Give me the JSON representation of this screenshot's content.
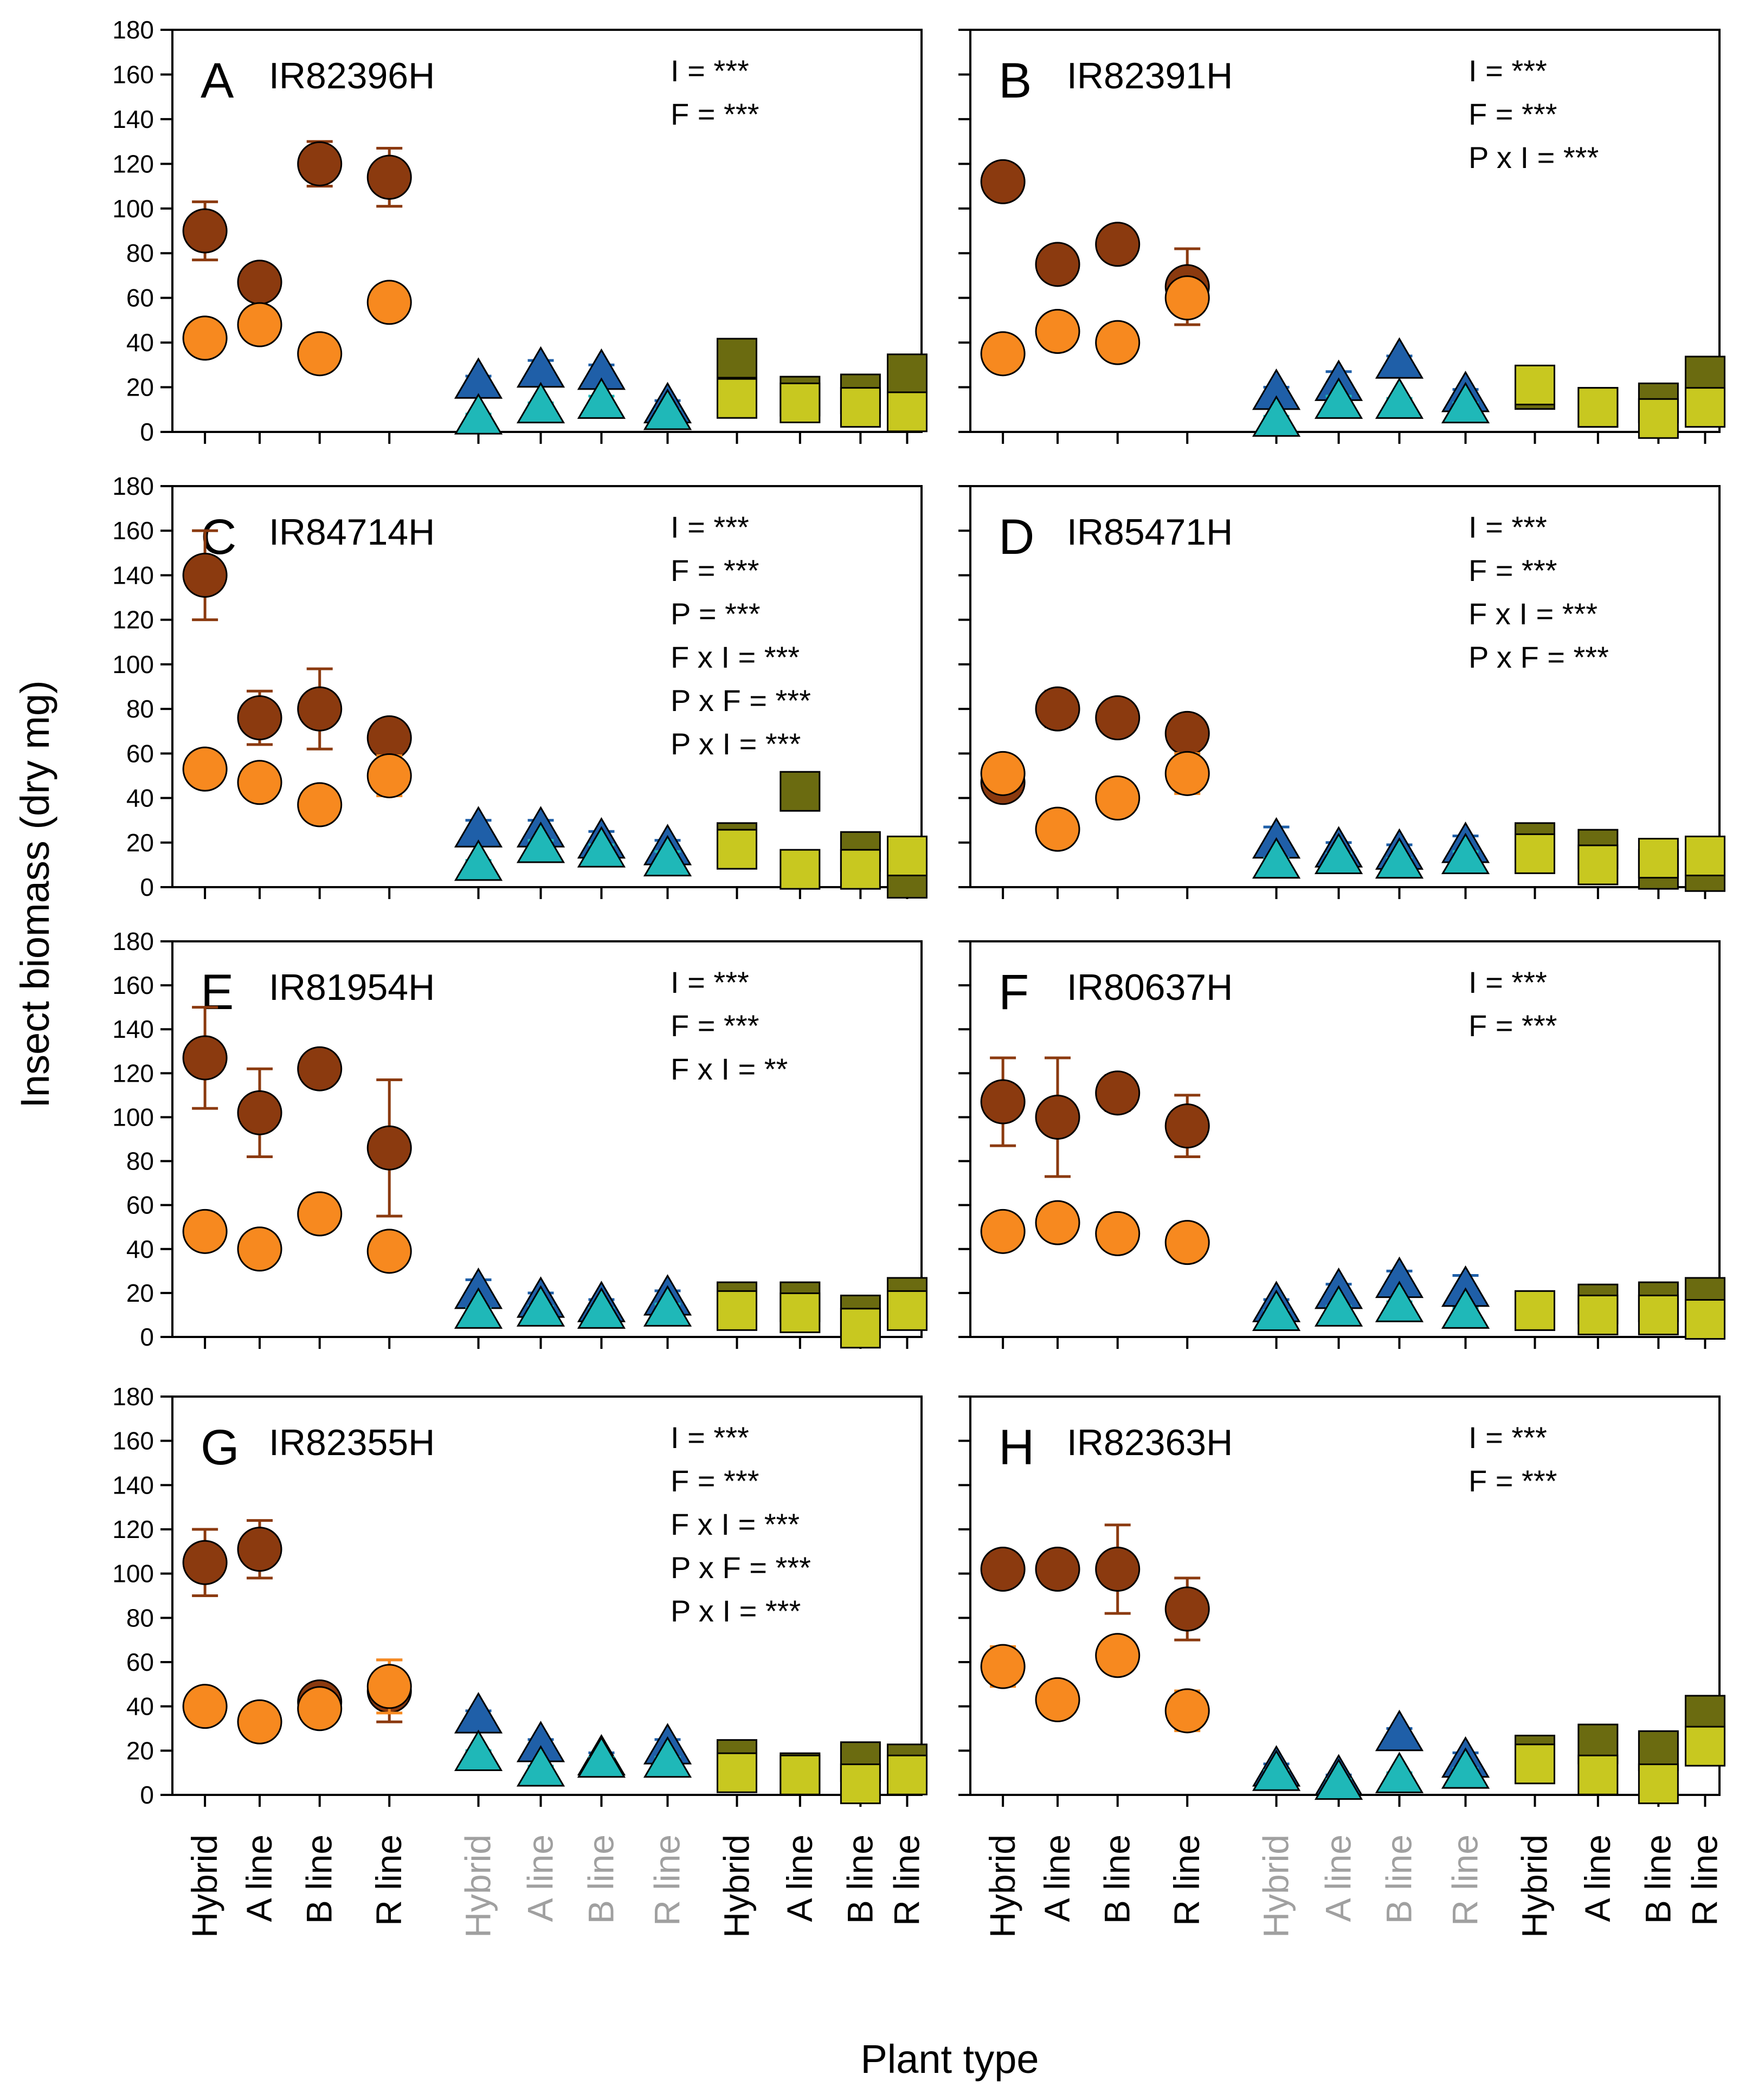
{
  "figure": {
    "ylabel": "Insect biomass (dry mg)",
    "xlabel": "Plant type",
    "ylim": [
      0,
      180
    ],
    "yticks": [
      0,
      20,
      40,
      60,
      80,
      100,
      120,
      140,
      160,
      180
    ],
    "categories": [
      "Hybrid",
      "A line",
      "B line",
      "R line",
      "Hybrid",
      "A line",
      "B line",
      "R line",
      "Hybrid",
      "A line",
      "B line",
      "R line"
    ],
    "category_colors": [
      "#000000",
      "#000000",
      "#000000",
      "#000000",
      "#a0a0a0",
      "#a0a0a0",
      "#a0a0a0",
      "#a0a0a0",
      "#000000",
      "#000000",
      "#000000",
      "#000000"
    ]
  },
  "colors": {
    "circle_dark": "#8b3a0f",
    "circle_light": "#f7891f",
    "triangle_dark": "#1f5fa8",
    "triangle_light": "#1fb8b8",
    "square_dark": "#6b6b10",
    "square_light": "#c8c820"
  },
  "chart_data": [
    {
      "type": "scatter",
      "panel": "A",
      "title": "IR82396H",
      "stats": [
        "I = ***",
        "F = ***"
      ],
      "series": [
        {
          "name": "circle_dark",
          "values": [
            90,
            67,
            120,
            114
          ],
          "err": [
            13,
            6,
            10,
            13
          ]
        },
        {
          "name": "circle_light",
          "values": [
            42,
            48,
            35,
            58
          ],
          "err": [
            7,
            4,
            3,
            3
          ]
        },
        {
          "name": "triangle_dark",
          "values": [
            22,
            27,
            26,
            11
          ],
          "err": [
            3,
            5,
            4,
            3
          ]
        },
        {
          "name": "triangle_light",
          "values": [
            6,
            11,
            13,
            8
          ],
          "err": [
            2,
            2,
            3,
            2
          ]
        },
        {
          "name": "square_dark",
          "values": [
            33,
            16,
            17,
            26
          ],
          "err": [
            3,
            3,
            3,
            4
          ]
        },
        {
          "name": "square_light",
          "values": [
            15,
            13,
            11,
            9
          ],
          "err": [
            2,
            2,
            2,
            2
          ]
        }
      ]
    },
    {
      "type": "scatter",
      "panel": "B",
      "title": "IR82391H",
      "stats": [
        "I = ***",
        "F = ***",
        "P x I = ***"
      ],
      "series": [
        {
          "name": "circle_dark",
          "values": [
            112,
            75,
            84,
            65
          ],
          "err": [
            5,
            3,
            6,
            17
          ]
        },
        {
          "name": "circle_light",
          "values": [
            35,
            45,
            40,
            60
          ],
          "err": [
            4,
            3,
            3,
            5
          ]
        },
        {
          "name": "triangle_dark",
          "values": [
            17,
            21,
            31,
            16
          ],
          "err": [
            3,
            6,
            3,
            3
          ]
        },
        {
          "name": "triangle_light",
          "values": [
            5,
            13,
            13,
            11
          ],
          "err": [
            2,
            3,
            2,
            2
          ]
        },
        {
          "name": "square_dark",
          "values": [
            19,
            11,
            13,
            25
          ],
          "err": [
            2,
            2,
            2,
            3
          ]
        },
        {
          "name": "square_light",
          "values": [
            21,
            11,
            6,
            11
          ],
          "err": [
            2,
            2,
            2,
            2
          ]
        }
      ]
    },
    {
      "type": "scatter",
      "panel": "C",
      "title": "IR84714H",
      "stats": [
        "I = ***",
        "F = ***",
        "P = ***",
        "F x I = ***",
        "P x F = ***",
        "P x I = ***"
      ],
      "series": [
        {
          "name": "circle_dark",
          "values": [
            140,
            76,
            80,
            67
          ],
          "err": [
            20,
            12,
            18,
            7
          ]
        },
        {
          "name": "circle_light",
          "values": [
            53,
            47,
            37,
            50
          ],
          "err": [
            6,
            3,
            3,
            9
          ]
        },
        {
          "name": "triangle_dark",
          "values": [
            25,
            25,
            20,
            17
          ],
          "err": [
            5,
            5,
            5,
            4
          ]
        },
        {
          "name": "triangle_light",
          "values": [
            10,
            18,
            16,
            12
          ],
          "err": [
            2,
            3,
            3,
            4
          ]
        },
        {
          "name": "square_dark",
          "values": [
            20,
            43,
            16,
            4
          ],
          "err": [
            3,
            7,
            3,
            2
          ]
        },
        {
          "name": "square_light",
          "values": [
            17,
            8,
            8,
            14
          ],
          "err": [
            2,
            2,
            2,
            2
          ]
        }
      ]
    },
    {
      "type": "scatter",
      "panel": "D",
      "title": "IR85471H",
      "stats": [
        "I = ***",
        "F = ***",
        "F x I = ***",
        "P x F = ***"
      ],
      "series": [
        {
          "name": "circle_dark",
          "values": [
            47,
            80,
            76,
            69
          ],
          "err": [
            7,
            8,
            6,
            7
          ]
        },
        {
          "name": "circle_light",
          "values": [
            51,
            26,
            40,
            51
          ],
          "err": [
            4,
            3,
            6,
            9
          ]
        },
        {
          "name": "triangle_dark",
          "values": [
            20,
            16,
            15,
            18
          ],
          "err": [
            7,
            4,
            4,
            5
          ]
        },
        {
          "name": "triangle_light",
          "values": [
            11,
            13,
            11,
            13
          ],
          "err": [
            2,
            2,
            2,
            3
          ]
        },
        {
          "name": "square_dark",
          "values": [
            20,
            17,
            8,
            7
          ],
          "err": [
            3,
            3,
            2,
            2
          ]
        },
        {
          "name": "square_light",
          "values": [
            15,
            10,
            13,
            14
          ],
          "err": [
            2,
            2,
            2,
            2
          ]
        }
      ]
    },
    {
      "type": "scatter",
      "panel": "E",
      "title": "IR81954H",
      "stats": [
        "I = ***",
        "F = ***",
        "F x I = **"
      ],
      "series": [
        {
          "name": "circle_dark",
          "values": [
            127,
            102,
            122,
            86
          ],
          "err": [
            23,
            20,
            3,
            31
          ]
        },
        {
          "name": "circle_light",
          "values": [
            48,
            40,
            56,
            39
          ],
          "err": [
            3,
            3,
            3,
            5
          ]
        },
        {
          "name": "triangle_dark",
          "values": [
            20,
            16,
            14,
            17
          ],
          "err": [
            6,
            4,
            3,
            4
          ]
        },
        {
          "name": "triangle_light",
          "values": [
            11,
            12,
            11,
            12
          ],
          "err": [
            2,
            2,
            2,
            3
          ]
        },
        {
          "name": "square_dark",
          "values": [
            16,
            16,
            10,
            18
          ],
          "err": [
            3,
            3,
            3,
            3
          ]
        },
        {
          "name": "square_light",
          "values": [
            12,
            11,
            4,
            12
          ],
          "err": [
            2,
            2,
            2,
            2
          ]
        }
      ]
    },
    {
      "type": "scatter",
      "panel": "F",
      "title": "IR80637H",
      "stats": [
        "I = ***",
        "F = ***"
      ],
      "series": [
        {
          "name": "circle_dark",
          "values": [
            107,
            100,
            111,
            96
          ],
          "err": [
            20,
            27,
            8,
            14
          ]
        },
        {
          "name": "circle_light",
          "values": [
            48,
            52,
            47,
            43
          ],
          "err": [
            3,
            6,
            4,
            7
          ]
        },
        {
          "name": "triangle_dark",
          "values": [
            14,
            20,
            25,
            21
          ],
          "err": [
            3,
            4,
            5,
            7
          ]
        },
        {
          "name": "triangle_light",
          "values": [
            10,
            12,
            14,
            11
          ],
          "err": [
            2,
            2,
            2,
            2
          ]
        },
        {
          "name": "square_dark",
          "values": [
            12,
            15,
            16,
            18
          ],
          "err": [
            2,
            3,
            3,
            3
          ]
        },
        {
          "name": "square_light",
          "values": [
            12,
            10,
            10,
            8
          ],
          "err": [
            2,
            2,
            2,
            2
          ]
        }
      ]
    },
    {
      "type": "scatter",
      "panel": "G",
      "title": "IR82355H",
      "stats": [
        "I = ***",
        "F = ***",
        "F x I = ***",
        "P x F = ***",
        "P x I = ***"
      ],
      "series": [
        {
          "name": "circle_dark",
          "values": [
            105,
            111,
            42,
            47
          ],
          "err": [
            15,
            13,
            6,
            14
          ]
        },
        {
          "name": "circle_light",
          "values": [
            40,
            33,
            39,
            49
          ],
          "err": [
            3,
            5,
            4,
            12
          ]
        },
        {
          "name": "triangle_dark",
          "values": [
            35,
            22,
            16,
            21
          ],
          "err": [
            3,
            3,
            3,
            4
          ]
        },
        {
          "name": "triangle_light",
          "values": [
            18,
            11,
            15,
            15
          ],
          "err": [
            2,
            2,
            2,
            2
          ]
        },
        {
          "name": "square_dark",
          "values": [
            16,
            10,
            15,
            14
          ],
          "err": [
            3,
            2,
            8,
            3
          ]
        },
        {
          "name": "square_light",
          "values": [
            10,
            9,
            5,
            9
          ],
          "err": [
            2,
            2,
            2,
            2
          ]
        }
      ]
    },
    {
      "type": "scatter",
      "panel": "H",
      "title": "IR82363H",
      "stats": [
        "I = ***",
        "F = ***"
      ],
      "series": [
        {
          "name": "circle_dark",
          "values": [
            102,
            102,
            102,
            84
          ],
          "err": [
            5,
            6,
            20,
            14
          ]
        },
        {
          "name": "circle_light",
          "values": [
            58,
            43,
            63,
            38
          ],
          "err": [
            9,
            7,
            3,
            9
          ]
        },
        {
          "name": "triangle_dark",
          "values": [
            11,
            7,
            27,
            15
          ],
          "err": [
            3,
            2,
            3,
            4
          ]
        },
        {
          "name": "triangle_light",
          "values": [
            9,
            5,
            8,
            10
          ],
          "err": [
            2,
            2,
            2,
            2
          ]
        },
        {
          "name": "square_dark",
          "values": [
            18,
            23,
            20,
            36
          ],
          "err": [
            3,
            3,
            3,
            5
          ]
        },
        {
          "name": "square_light",
          "values": [
            14,
            9,
            5,
            22
          ],
          "err": [
            2,
            2,
            2,
            3
          ]
        }
      ]
    }
  ]
}
